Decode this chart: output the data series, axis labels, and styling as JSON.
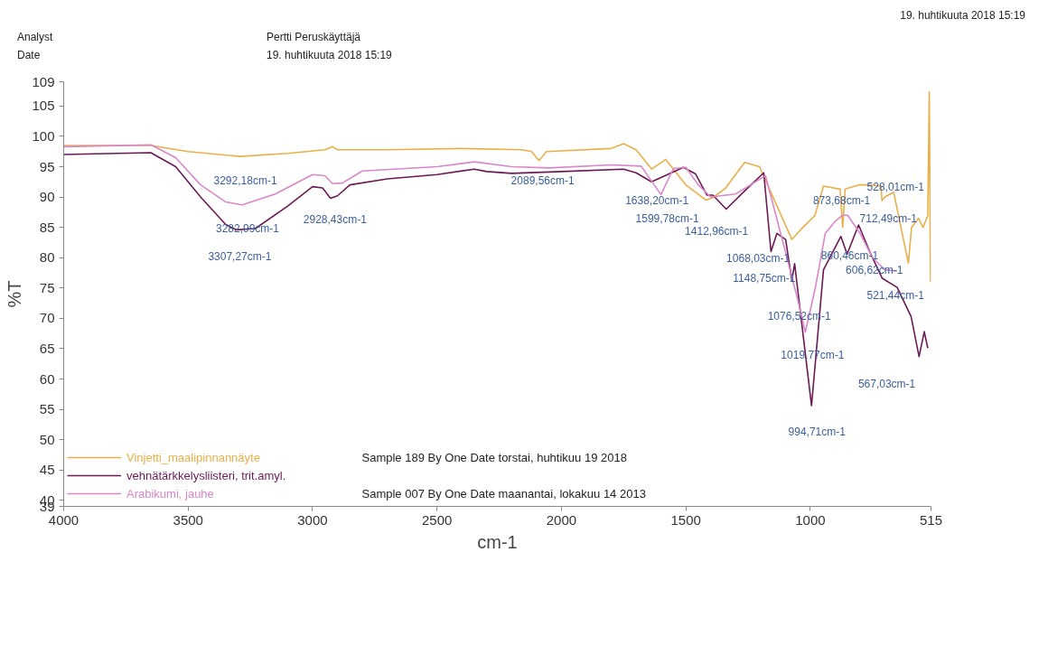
{
  "chart_data": {
    "type": "line",
    "xlabel": "cm-1",
    "ylabel": "%T",
    "xlim": [
      4000,
      515
    ],
    "xticks": [
      4000,
      3500,
      3000,
      2500,
      2000,
      1500,
      1000,
      515
    ],
    "ylim": [
      39,
      109
    ],
    "yticks": [
      39,
      40,
      45,
      50,
      55,
      60,
      65,
      70,
      75,
      80,
      85,
      90,
      95,
      100,
      105,
      109
    ],
    "grid": false,
    "legend": "bottom left",
    "marker": "none",
    "line_style": "solid",
    "series": [
      {
        "name": "Vinjetti_maalipinnannäyte",
        "color": "#e8b04a",
        "x": [
          4000,
          3650,
          3500,
          3292,
          3100,
          2950,
          2920,
          2900,
          2700,
          2400,
          2160,
          2120,
          2090,
          2060,
          1800,
          1750,
          1700,
          1637,
          1581,
          1500,
          1420,
          1390,
          1340,
          1264,
          1204,
          1150,
          1074,
          1030,
          982,
          947,
          880,
          870,
          860,
          806,
          760,
          716,
          712,
          700,
          665,
          606,
          593,
          565,
          547,
          528,
          522,
          517,
          515
        ],
        "values": [
          98.5,
          98.5,
          97.5,
          96.7,
          97.2,
          97.8,
          98.3,
          97.8,
          97.8,
          98,
          97.8,
          97.5,
          96,
          97.5,
          98,
          98.8,
          97.8,
          94.6,
          96.2,
          92,
          89.5,
          89.9,
          91.5,
          95.7,
          95,
          90,
          83,
          85,
          86.9,
          91.8,
          91.3,
          85,
          91.3,
          92,
          92,
          91.8,
          89.4,
          90,
          90.8,
          79.1,
          85,
          86.5,
          85,
          86.9,
          107.3,
          76.2,
          76
        ]
      },
      {
        "name": "vehnätärkkelysliisteri, trit.amyl.",
        "color": "#6b1a55",
        "x": [
          4000,
          3650,
          3550,
          3450,
          3350,
          3307,
          3230,
          3100,
          3000,
          2960,
          2928,
          2900,
          2850,
          2700,
          2500,
          2350,
          2300,
          2200,
          2000,
          1750,
          1700,
          1638,
          1510,
          1461,
          1415,
          1391,
          1338,
          1264,
          1187,
          1158,
          1134,
          1099,
          1074,
          1063,
          995,
          947,
          877,
          852,
          806,
          757,
          711,
          651,
          595,
          563,
          542,
          528
        ],
        "values": [
          97,
          97.3,
          95,
          90,
          85.5,
          84.6,
          84.8,
          88.5,
          91.7,
          91.5,
          89.8,
          90.2,
          92,
          93,
          93.7,
          94.6,
          94.2,
          93.9,
          94.2,
          94.6,
          94,
          92.5,
          94.9,
          93.8,
          90.3,
          90.3,
          88,
          91,
          94,
          81,
          84,
          83,
          76.2,
          79,
          55.6,
          78,
          83.5,
          80.6,
          85.4,
          80.6,
          76.6,
          75.1,
          70.3,
          63.7,
          67.8,
          65.1
        ]
      },
      {
        "name": "Arabikumi, jauhe",
        "color": "#d987c8",
        "x": [
          4000,
          3650,
          3550,
          3450,
          3350,
          3283,
          3150,
          3000,
          2950,
          2920,
          2880,
          2800,
          2500,
          2350,
          2200,
          2050,
          1800,
          1680,
          1600,
          1550,
          1500,
          1450,
          1400,
          1300,
          1200,
          1180,
          1100,
          1050,
          1020,
          980,
          940,
          900,
          870,
          850,
          800,
          750,
          700,
          651
        ],
        "values": [
          98.3,
          98.6,
          96.5,
          92,
          89.2,
          88.7,
          90.5,
          93.7,
          93.5,
          92.2,
          92.3,
          94.3,
          95,
          95.8,
          95,
          94.8,
          95.3,
          95.1,
          90.4,
          94.7,
          94.9,
          92,
          90,
          90.5,
          93,
          93.5,
          81,
          73,
          67.7,
          75,
          84,
          86,
          87,
          87,
          84,
          80,
          78,
          77.8
        ]
      }
    ],
    "annotations": [
      "Analyst",
      "Pertti Peruskäyttäjä",
      "Date",
      "19. huhtikuuta 2018 15:19",
      "19. huhtikuuta 2018 15:19",
      "Sample 189 By One Date torstai, huhtikuu 19 2018",
      "Sample 007 By One Date maanantai, lokakuu 14 2013",
      {
        "text": "3292,18cm-1",
        "x": 3292,
        "y": 96.7
      },
      {
        "text": "3282,99cm-1",
        "x": 3283,
        "y": 88.7
      },
      {
        "text": "3307,27cm-1",
        "x": 3307,
        "y": 84.6
      },
      {
        "text": "2928,43cm-1",
        "x": 2928,
        "y": 89.8
      },
      {
        "text": "2089,56cm-1",
        "x": 2090,
        "y": 96
      },
      {
        "text": "1638,20cm-1",
        "x": 1638,
        "y": 92.5
      },
      {
        "text": "1599,78cm-1",
        "x": 1600,
        "y": 90.4
      },
      {
        "text": "1412,96cm-1",
        "x": 1413,
        "y": 89.6
      },
      {
        "text": "1068,03cm-1",
        "x": 1068,
        "y": 83
      },
      {
        "text": "1148,75cm-1",
        "x": 1149,
        "y": 81
      },
      {
        "text": "1076,52cm-1",
        "x": 1077,
        "y": 76
      },
      {
        "text": "1019,77cm-1",
        "x": 1020,
        "y": 67.7
      },
      {
        "text": "994,71cm-1",
        "x": 995,
        "y": 55.6
      },
      {
        "text": "873,68cm-1",
        "x": 874,
        "y": 83.5
      },
      {
        "text": "860,46cm-1",
        "x": 860,
        "y": 84
      },
      {
        "text": "712,49cm-1",
        "x": 712,
        "y": 89.4
      },
      {
        "text": "606,62cm-1",
        "x": 606,
        "y": 79.1
      },
      {
        "text": "528,01cm-1",
        "x": 528,
        "y": 86.9
      },
      {
        "text": "521,44cm-1",
        "x": 521,
        "y": 76.5
      },
      {
        "text": "567,03cm-1",
        "x": 563,
        "y": 63.7
      }
    ]
  }
}
